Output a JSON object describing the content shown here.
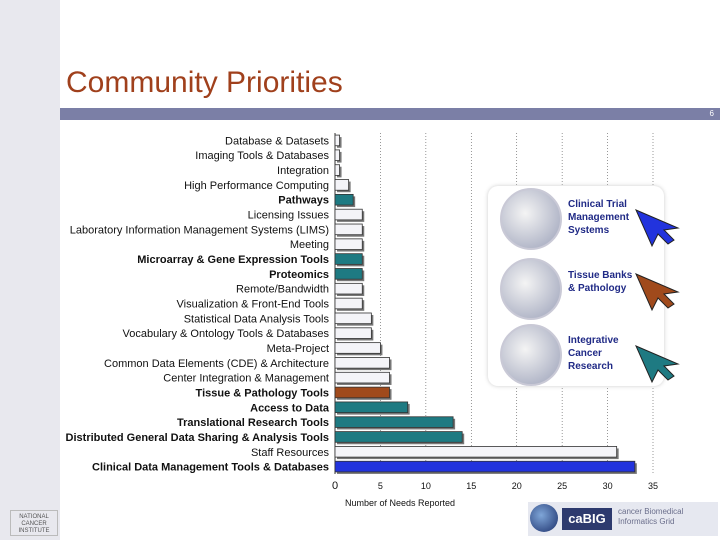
{
  "slide": {
    "title": "Community Priorities",
    "page_number": "6"
  },
  "legend": [
    {
      "label": "Clinical Trial Management Systems",
      "color": "#2233dd"
    },
    {
      "label": "Tissue Banks & Pathology",
      "color": "#a04a1c"
    },
    {
      "label": "Integrative Cancer Research",
      "color": "#1e7a82"
    }
  ],
  "footer": {
    "institute": "NATIONAL CANCER INSTITUTE",
    "brand": "caBIG",
    "brand_desc": "cancer Biomedical Informatics Grid"
  },
  "chart_data": {
    "type": "bar",
    "orientation": "horizontal",
    "xlabel": "Number of Needs Reported",
    "xlim": [
      0,
      35
    ],
    "xticks": [
      0,
      5,
      10,
      15,
      20,
      25,
      30,
      35
    ],
    "grid": true,
    "categories": [
      {
        "label": "Database & Datasets",
        "value": 0.5,
        "bold": false,
        "color": "#f4f4f8"
      },
      {
        "label": "Imaging Tools & Databases",
        "value": 0.5,
        "bold": false,
        "color": "#f4f4f8"
      },
      {
        "label": "Integration",
        "value": 0.5,
        "bold": false,
        "color": "#f4f4f8"
      },
      {
        "label": "High Performance Computing",
        "value": 1.5,
        "bold": false,
        "color": "#f4f4f8"
      },
      {
        "label": "Pathways",
        "value": 2,
        "bold": true,
        "color": "#1e7a82"
      },
      {
        "label": "Licensing Issues",
        "value": 3,
        "bold": false,
        "color": "#f4f4f8"
      },
      {
        "label": "Laboratory Information Management Systems (LIMS)",
        "value": 3,
        "bold": false,
        "color": "#f4f4f8"
      },
      {
        "label": "Meeting",
        "value": 3,
        "bold": false,
        "color": "#f4f4f8"
      },
      {
        "label": "Microarray & Gene Expression Tools",
        "value": 3,
        "bold": true,
        "color": "#1e7a82"
      },
      {
        "label": "Proteomics",
        "value": 3,
        "bold": true,
        "color": "#1e7a82"
      },
      {
        "label": "Remote/Bandwidth",
        "value": 3,
        "bold": false,
        "color": "#f4f4f8"
      },
      {
        "label": "Visualization & Front-End Tools",
        "value": 3,
        "bold": false,
        "color": "#f4f4f8"
      },
      {
        "label": "Statistical Data Analysis Tools",
        "value": 4,
        "bold": false,
        "color": "#f4f4f8"
      },
      {
        "label": "Vocabulary & Ontology Tools & Databases",
        "value": 4,
        "bold": false,
        "color": "#f4f4f8"
      },
      {
        "label": "Meta-Project",
        "value": 5,
        "bold": false,
        "color": "#f4f4f8"
      },
      {
        "label": "Common Data Elements (CDE) & Architecture",
        "value": 6,
        "bold": false,
        "color": "#f4f4f8"
      },
      {
        "label": "Center Integration & Management",
        "value": 6,
        "bold": false,
        "color": "#f4f4f8"
      },
      {
        "label": "Tissue & Pathology Tools",
        "value": 6,
        "bold": true,
        "color": "#a04a1c"
      },
      {
        "label": "Access to Data",
        "value": 8,
        "bold": true,
        "color": "#1e7a82"
      },
      {
        "label": "Translational Research Tools",
        "value": 13,
        "bold": true,
        "color": "#1e7a82"
      },
      {
        "label": "Distributed General Data Sharing & Analysis Tools",
        "value": 14,
        "bold": true,
        "color": "#1e7a82"
      },
      {
        "label": "Staff Resources",
        "value": 31,
        "bold": false,
        "color": "#f4f4f8"
      },
      {
        "label": "Clinical Data Management Tools & Databases",
        "value": 33,
        "bold": true,
        "color": "#2233dd"
      }
    ]
  }
}
